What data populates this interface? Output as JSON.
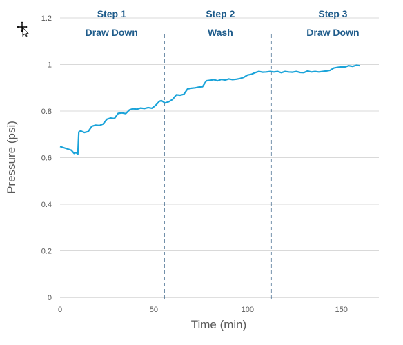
{
  "chart_data": {
    "type": "line",
    "xlabel": "Time (min)",
    "ylabel": "Pressure (psi)",
    "xlim": [
      0,
      170
    ],
    "ylim": [
      0,
      1.2
    ],
    "x_ticks": [
      0,
      50,
      100,
      150
    ],
    "y_ticks": [
      0,
      0.2,
      0.4,
      0.6,
      0.8,
      1,
      1.2
    ],
    "x_tick_labels": [
      "0",
      "50",
      "100",
      "150"
    ],
    "y_tick_labels": [
      "0",
      "0.2",
      "0.4",
      "0.6",
      "0.8",
      "1",
      "1.2"
    ],
    "grid": "horizontal",
    "line_color": "#1aa3d9",
    "divider_color": "#1f4e79",
    "step_color": "#1f5c8b",
    "dividers": [
      55.5,
      112.5
    ],
    "steps": [
      {
        "title": "Step 1",
        "subtitle": "Draw Down",
        "x": 27.5
      },
      {
        "title": "Step 2",
        "subtitle": "Wash",
        "x": 85.5
      },
      {
        "title": "Step 3",
        "subtitle": "Draw Down",
        "x": 145.5
      }
    ],
    "series": [
      {
        "x": [
          0,
          3,
          6,
          7.5,
          8.5,
          9.5,
          10,
          11,
          13,
          15,
          17,
          19,
          21,
          23,
          25,
          27,
          29,
          31,
          33,
          35,
          37,
          39,
          41,
          43,
          45,
          47,
          49,
          51,
          53,
          54,
          56,
          58,
          60,
          62,
          64,
          66,
          68,
          70,
          72,
          74,
          76,
          78,
          80,
          82,
          84,
          86,
          88,
          90,
          92,
          94,
          96,
          98,
          100,
          102,
          104,
          106,
          108,
          110,
          112,
          114,
          116,
          118,
          120,
          122,
          124,
          126,
          128,
          130,
          132,
          134,
          136,
          138,
          140,
          142,
          144,
          146,
          148,
          150,
          152,
          154,
          156,
          158,
          160
        ],
        "values": [
          0.648,
          0.64,
          0.632,
          0.618,
          0.622,
          0.615,
          0.71,
          0.715,
          0.708,
          0.712,
          0.735,
          0.74,
          0.738,
          0.745,
          0.765,
          0.77,
          0.768,
          0.79,
          0.792,
          0.789,
          0.805,
          0.81,
          0.808,
          0.813,
          0.811,
          0.815,
          0.812,
          0.825,
          0.842,
          0.845,
          0.835,
          0.84,
          0.85,
          0.87,
          0.868,
          0.872,
          0.895,
          0.898,
          0.9,
          0.903,
          0.905,
          0.93,
          0.932,
          0.935,
          0.93,
          0.936,
          0.933,
          0.938,
          0.935,
          0.937,
          0.94,
          0.945,
          0.955,
          0.958,
          0.965,
          0.97,
          0.967,
          0.968,
          0.97,
          0.968,
          0.97,
          0.965,
          0.97,
          0.968,
          0.967,
          0.97,
          0.966,
          0.965,
          0.972,
          0.968,
          0.97,
          0.968,
          0.97,
          0.972,
          0.975,
          0.985,
          0.988,
          0.99,
          0.99,
          0.995,
          0.992,
          0.997,
          0.995
        ]
      }
    ]
  }
}
